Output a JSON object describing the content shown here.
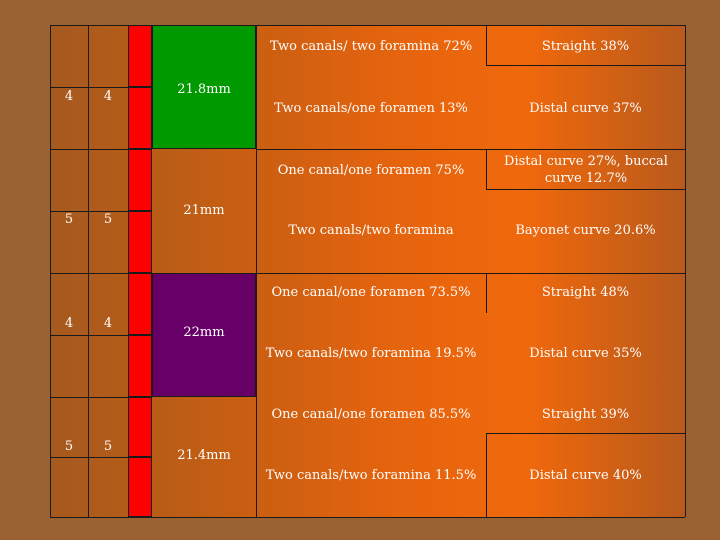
{
  "groups": [
    {
      "col1": "4",
      "col2": "4",
      "length": "21.8mm",
      "rows": [
        {
          "canals": "Two canals/ two foramina 72%",
          "curvature": "Straight 38%"
        },
        {
          "canals": "Two canals/one foramen 13%",
          "curvature": "Distal curve 37%"
        }
      ]
    },
    {
      "col1": "5",
      "col2": "5",
      "length": "21mm",
      "rows": [
        {
          "canals": "One canal/one foramen 75%",
          "curvature": "Distal curve 27%, buccal curve 12.7%"
        },
        {
          "canals": "Two canals/two foramina",
          "curvature": "Bayonet curve 20.6%"
        }
      ]
    },
    {
      "col1": "4",
      "col2": "4",
      "length": "22mm",
      "rows": [
        {
          "canals": "One canal/one foramen 73.5%",
          "curvature": "Straight 48%"
        },
        {
          "canals": "Two canals/two foramina 19.5%",
          "curvature": "Distal curve 35%"
        }
      ]
    },
    {
      "col1": "5",
      "col2": "5",
      "length": "21.4mm",
      "rows": [
        {
          "canals": "One canal/one foramen 85.5%",
          "curvature": "Straight 39%"
        },
        {
          "canals": "Two canals/two foramina 11.5%",
          "curvature": "Distal curve 40%"
        }
      ]
    }
  ],
  "colors": {
    "background": "#9a6233",
    "red_column": "#ff0000",
    "group1_length": "#009900",
    "group3_length": "#660066"
  }
}
